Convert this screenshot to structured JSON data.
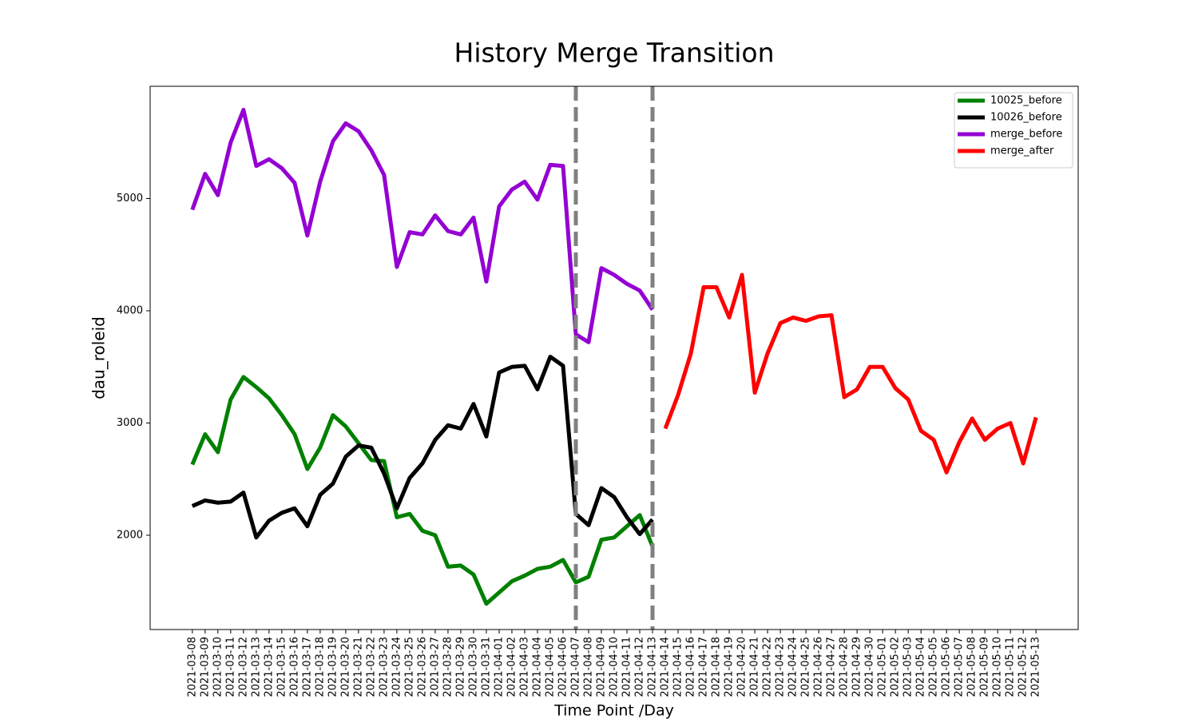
{
  "chart_data": {
    "type": "line",
    "title": "History Merge Transition",
    "x_label": "Time Point /Day",
    "y_label": "dau_roleid",
    "categories": [
      "2021-03-08",
      "2021-03-09",
      "2021-03-10",
      "2021-03-11",
      "2021-03-12",
      "2021-03-13",
      "2021-03-14",
      "2021-03-15",
      "2021-03-16",
      "2021-03-17",
      "2021-03-18",
      "2021-03-19",
      "2021-03-20",
      "2021-03-21",
      "2021-03-22",
      "2021-03-23",
      "2021-03-24",
      "2021-03-25",
      "2021-03-26",
      "2021-03-27",
      "2021-03-28",
      "2021-03-29",
      "2021-03-30",
      "2021-03-31",
      "2021-04-01",
      "2021-04-02",
      "2021-04-03",
      "2021-04-04",
      "2021-04-05",
      "2021-04-06",
      "2021-04-07",
      "2021-04-08",
      "2021-04-09",
      "2021-04-10",
      "2021-04-11",
      "2021-04-12",
      "2021-04-13",
      "2021-04-14",
      "2021-04-15",
      "2021-04-16",
      "2021-04-17",
      "2021-04-18",
      "2021-04-19",
      "2021-04-20",
      "2021-04-21",
      "2021-04-22",
      "2021-04-23",
      "2021-04-24",
      "2021-04-25",
      "2021-04-26",
      "2021-04-27",
      "2021-04-28",
      "2021-04-29",
      "2021-04-30",
      "2021-05-01",
      "2021-05-02",
      "2021-05-03",
      "2021-05-04",
      "2021-05-05",
      "2021-05-06",
      "2021-05-07",
      "2021-05-08",
      "2021-05-09",
      "2021-05-10",
      "2021-05-11",
      "2021-05-12",
      "2021-05-13"
    ],
    "series": [
      {
        "name": "10025_before",
        "color": "#008000",
        "values": [
          2630,
          2900,
          2740,
          3210,
          3410,
          3320,
          3220,
          3070,
          2900,
          2590,
          2780,
          3070,
          2970,
          2820,
          2670,
          2660,
          2160,
          2190,
          2040,
          2000,
          1720,
          1730,
          1650,
          1390,
          1490,
          1590,
          1640,
          1700,
          1720,
          1780,
          1580,
          1630,
          1960,
          1980,
          2080,
          2180,
          1900,
          null,
          null,
          null,
          null,
          null,
          null,
          null,
          null,
          null,
          null,
          null,
          null,
          null,
          null,
          null,
          null,
          null,
          null,
          null,
          null,
          null,
          null,
          null,
          null,
          null,
          null,
          null,
          null,
          null,
          null
        ]
      },
      {
        "name": "10026_before",
        "color": "#000000",
        "values": [
          2260,
          2310,
          2290,
          2300,
          2380,
          1980,
          2130,
          2200,
          2240,
          2080,
          2360,
          2460,
          2700,
          2800,
          2780,
          2550,
          2240,
          2510,
          2640,
          2850,
          2980,
          2950,
          3170,
          2880,
          3450,
          3500,
          3510,
          3300,
          3590,
          3510,
          2190,
          2090,
          2420,
          2340,
          2160,
          2010,
          2140,
          null,
          null,
          null,
          null,
          null,
          null,
          null,
          null,
          null,
          null,
          null,
          null,
          null,
          null,
          null,
          null,
          null,
          null,
          null,
          null,
          null,
          null,
          null,
          null,
          null,
          null,
          null,
          null,
          null,
          null
        ]
      },
      {
        "name": "merge_before",
        "color": "#9400d3",
        "values": [
          4900,
          5220,
          5030,
          5500,
          5790,
          5290,
          5350,
          5270,
          5140,
          4670,
          5150,
          5510,
          5670,
          5600,
          5430,
          5210,
          4390,
          4700,
          4680,
          4850,
          4710,
          4680,
          4830,
          4260,
          4930,
          5080,
          5150,
          4990,
          5300,
          5290,
          3790,
          3720,
          4380,
          4320,
          4240,
          4180,
          4010,
          null,
          null,
          null,
          null,
          null,
          null,
          null,
          null,
          null,
          null,
          null,
          null,
          null,
          null,
          null,
          null,
          null,
          null,
          null,
          null,
          null,
          null,
          null,
          null,
          null,
          null,
          null,
          null,
          null,
          null
        ]
      },
      {
        "name": "merge_after",
        "color": "#ff0000",
        "values": [
          null,
          null,
          null,
          null,
          null,
          null,
          null,
          null,
          null,
          null,
          null,
          null,
          null,
          null,
          null,
          null,
          null,
          null,
          null,
          null,
          null,
          null,
          null,
          null,
          null,
          null,
          null,
          null,
          null,
          null,
          null,
          null,
          null,
          null,
          null,
          null,
          null,
          2950,
          3250,
          3620,
          4210,
          4210,
          3940,
          4320,
          3270,
          3620,
          3890,
          3940,
          3910,
          3950,
          3960,
          3230,
          3300,
          3500,
          3500,
          3310,
          3210,
          2930,
          2850,
          2560,
          2830,
          3040,
          2850,
          2950,
          3000,
          2640,
          3050
        ]
      }
    ],
    "vlines": [
      "2021-04-07",
      "2021-04-13"
    ],
    "vline_color": "#808080",
    "ylim": [
      1160,
      6000
    ],
    "yticks": [
      2000,
      3000,
      4000,
      5000
    ],
    "legend": "upper right"
  }
}
